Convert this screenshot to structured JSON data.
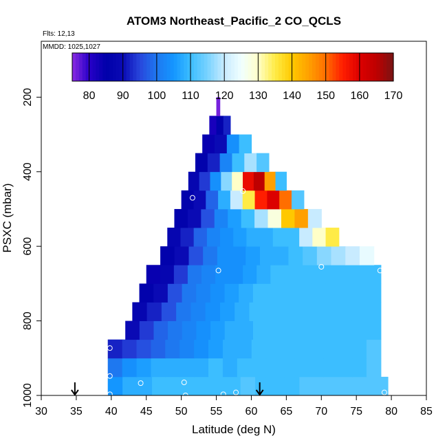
{
  "chart_data": {
    "type": "heatmap",
    "title": "ATOM3 Northeast_Pacific_2 CO_QCLS",
    "flights_label": "Flts: 12,13",
    "date_label": "MMDD: 1025,1027",
    "xlabel": "Latitude (deg N)",
    "ylabel": "PSXC (mbar)",
    "xlim": [
      30,
      85
    ],
    "ylim": [
      1000,
      50
    ],
    "x_ticks": [
      "30",
      "35",
      "40",
      "45",
      "50",
      "55",
      "60",
      "65",
      "70",
      "75",
      "80",
      "85"
    ],
    "y_ticks": [
      "200",
      "400",
      "600",
      "800",
      "1000"
    ],
    "colorbar": {
      "range": [
        75,
        170
      ],
      "ticks": [
        "80",
        "90",
        "100",
        "110",
        "120",
        "130",
        "140",
        "150",
        "160",
        "170"
      ]
    },
    "bin_height_mbar": 50,
    "rows": [
      {
        "p": 975,
        "x0": 39.5,
        "x1": 79.5,
        "values": [
          105,
          108,
          108,
          110,
          110,
          110,
          110,
          110,
          110,
          112,
          110,
          110,
          110,
          112,
          112,
          112,
          112,
          112,
          112
        ]
      },
      {
        "p": 925,
        "x0": 39.5,
        "x1": 78.5,
        "values": [
          100,
          104,
          106,
          108,
          108,
          108,
          108,
          110,
          108,
          110,
          110,
          110,
          110,
          110,
          110,
          110,
          110,
          110,
          112
        ]
      },
      {
        "p": 875,
        "x0": 39.5,
        "x1": 78.5,
        "values": [
          92,
          94,
          96,
          98,
          100,
          102,
          104,
          106,
          108,
          108,
          110,
          110,
          110,
          110,
          110,
          110,
          110,
          110,
          112
        ]
      },
      {
        "p": 825,
        "x0": 42,
        "x1": 78.5,
        "values": [
          90,
          94,
          98,
          100,
          102,
          104,
          106,
          108,
          108,
          110,
          110,
          110,
          110,
          110,
          110,
          110,
          110,
          110
        ]
      },
      {
        "p": 775,
        "x0": 43,
        "x1": 78.5,
        "values": [
          88,
          92,
          96,
          100,
          102,
          104,
          106,
          108,
          110,
          110,
          110,
          110,
          110,
          110,
          110,
          110,
          110
        ]
      },
      {
        "p": 725,
        "x0": 44,
        "x1": 78.5,
        "values": [
          86,
          90,
          96,
          100,
          102,
          104,
          106,
          108,
          110,
          110,
          110,
          110,
          110,
          110,
          110,
          110,
          110
        ]
      },
      {
        "p": 675,
        "x0": 45,
        "x1": 78.5,
        "values": [
          84,
          88,
          94,
          100,
          102,
          104,
          104,
          106,
          108,
          110,
          110,
          110,
          110,
          110,
          110,
          110,
          110
        ]
      },
      {
        "p": 625,
        "x0": 47,
        "x1": 77.5,
        "values": [
          86,
          90,
          96,
          100,
          104,
          104,
          106,
          108,
          108,
          110,
          112,
          116,
          118,
          120,
          124
        ]
      },
      {
        "p": 575,
        "x0": 48,
        "x1": 72.5,
        "values": [
          88,
          92,
          98,
          102,
          104,
          106,
          108,
          108,
          110,
          110,
          120,
          130,
          135
        ]
      },
      {
        "p": 525,
        "x0": 49,
        "x1": 70,
        "values": [
          86,
          90,
          96,
          102,
          106,
          110,
          118,
          128,
          140,
          145,
          120
        ]
      },
      {
        "p": 475,
        "x0": 50,
        "x1": 67.5,
        "values": [
          86,
          90,
          98,
          108,
          120,
          135,
          155,
          160,
          150,
          112
        ]
      },
      {
        "p": 425,
        "x0": 51,
        "x1": 65,
        "values": [
          88,
          94,
          104,
          116,
          130,
          158,
          165,
          145,
          110
        ]
      },
      {
        "p": 375,
        "x0": 52,
        "x1": 62.5,
        "values": [
          86,
          92,
          102,
          110,
          118,
          112
        ]
      },
      {
        "p": 325,
        "x0": 53,
        "x1": 60,
        "values": [
          84,
          90,
          104,
          110
        ]
      },
      {
        "p": 275,
        "x0": 54,
        "x1": 57,
        "values": [
          82,
          86,
          92
        ]
      },
      {
        "p": 225,
        "x0": 55,
        "x1": 55.5,
        "values": [
          76
        ]
      }
    ],
    "sample_points": [
      {
        "lat": 53.2,
        "p": 262
      },
      {
        "lat": 51.6,
        "p": 470
      },
      {
        "lat": 58.8,
        "p": 452
      },
      {
        "lat": 55.3,
        "p": 665
      },
      {
        "lat": 70.0,
        "p": 655
      },
      {
        "lat": 78.4,
        "p": 665
      },
      {
        "lat": 39.8,
        "p": 873
      },
      {
        "lat": 39.8,
        "p": 948
      },
      {
        "lat": 44.2,
        "p": 967
      },
      {
        "lat": 50.4,
        "p": 965
      },
      {
        "lat": 50.6,
        "p": 1000
      },
      {
        "lat": 56.0,
        "p": 997
      },
      {
        "lat": 57.8,
        "p": 992
      },
      {
        "lat": 39.8,
        "p": 997
      },
      {
        "lat": 79.0,
        "p": 992
      }
    ],
    "markers": [
      {
        "lat": 34.8
      },
      {
        "lat": 61.2
      }
    ]
  }
}
